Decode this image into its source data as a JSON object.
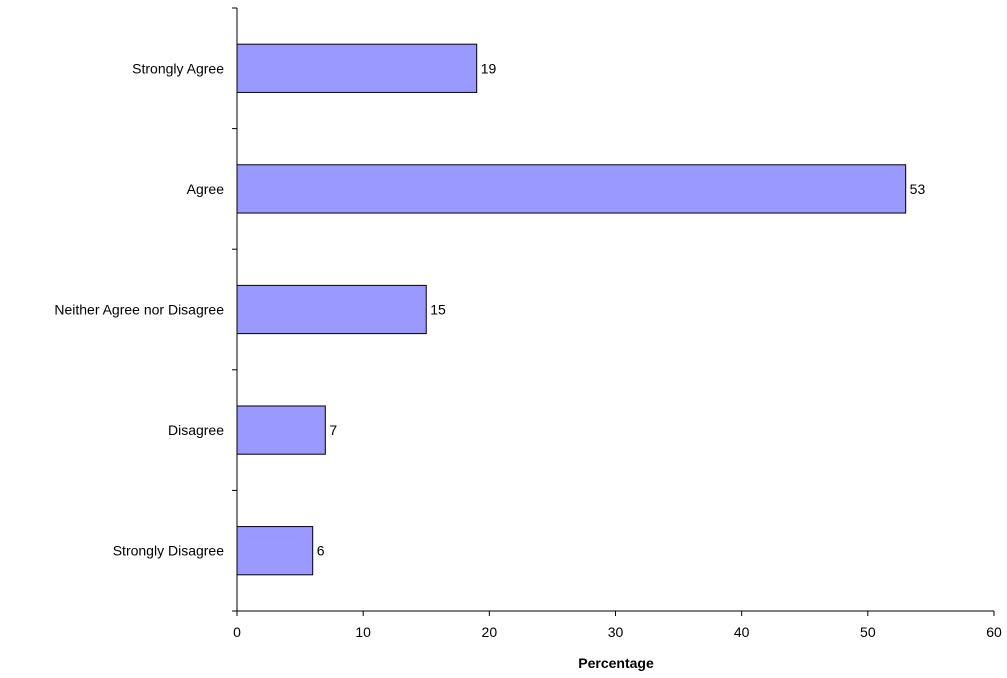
{
  "chart_data": {
    "type": "bar",
    "orientation": "horizontal",
    "categories": [
      "Strongly Agree",
      "Agree",
      "Neither Agree nor Disagree",
      "Disagree",
      "Strongly Disagree"
    ],
    "values": [
      19,
      53,
      15,
      7,
      6
    ],
    "data_labels": [
      "19",
      "53",
      "15",
      "7",
      "6"
    ],
    "title": "",
    "xlabel": "Percentage",
    "ylabel": "",
    "xlim": [
      0,
      60
    ],
    "x_ticks": [
      0,
      10,
      20,
      30,
      40,
      50,
      60
    ],
    "x_tick_labels": [
      "0",
      "10",
      "20",
      "30",
      "40",
      "50",
      "60"
    ],
    "grid": false,
    "legend": "none",
    "bar_color": "#9999FF",
    "bar_edge_color": "#000000"
  }
}
